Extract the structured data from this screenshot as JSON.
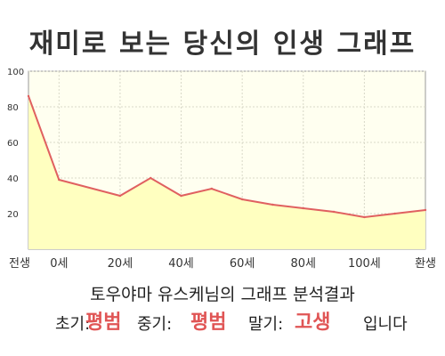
{
  "title": "재미로 보는 당신의 인생 그래프",
  "caption": "토우야마 유스케님의 그래프 분석결과",
  "result": {
    "early_label": "초기:",
    "early_value": "평범",
    "middle_label": "중기:",
    "middle_value": "평범",
    "late_label": "말기:",
    "late_value": "고생",
    "suffix": "입니다"
  },
  "colors": {
    "line": "#e06060",
    "fill": "#ffffc0",
    "background": "#fffff0",
    "highlight": "#e05555"
  },
  "chart_data": {
    "type": "area",
    "title": "",
    "xlabel": "",
    "ylabel": "",
    "xlim": [
      -10,
      120
    ],
    "ylim": [
      0,
      100
    ],
    "grid": true,
    "legend": "none",
    "x_tick_labels": [
      {
        "x": -10,
        "label": "전생"
      },
      {
        "x": 0,
        "label": "0세"
      },
      {
        "x": 20,
        "label": "20세"
      },
      {
        "x": 40,
        "label": "40세"
      },
      {
        "x": 60,
        "label": "60세"
      },
      {
        "x": 80,
        "label": "80세"
      },
      {
        "x": 100,
        "label": "100세"
      },
      {
        "x": 120,
        "label": "환생"
      }
    ],
    "y_ticks": [
      20,
      40,
      60,
      80,
      100
    ],
    "series": [
      {
        "x": [
          -10,
          0,
          20,
          30,
          40,
          50,
          60,
          70,
          80,
          90,
          100,
          110,
          120
        ],
        "values": [
          86,
          39,
          30,
          40,
          30,
          34,
          28,
          25,
          23,
          21,
          18,
          20,
          22
        ]
      }
    ]
  }
}
